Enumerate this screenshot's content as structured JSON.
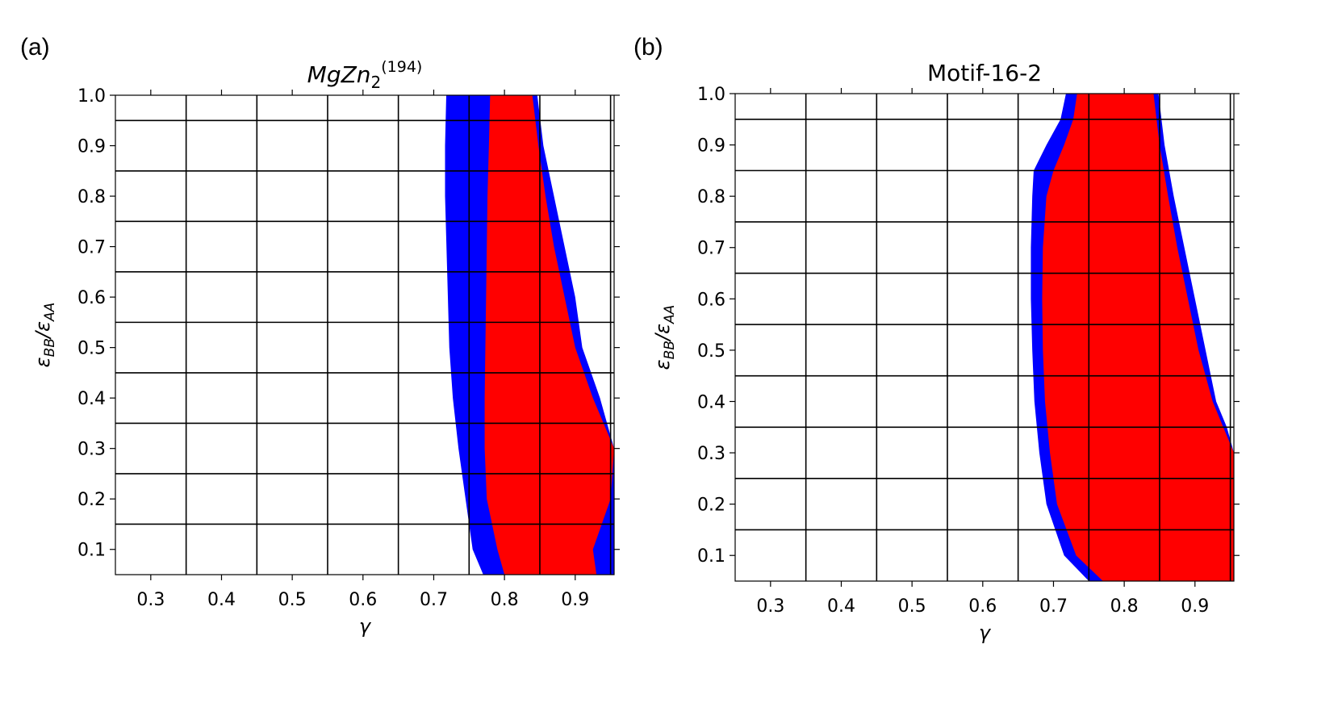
{
  "figure": {
    "panel_labels": [
      "(a)",
      "(b)"
    ]
  },
  "colors": {
    "region_primary": "#ff0000",
    "region_secondary": "#0000ff",
    "grid": "#000000",
    "axis": "#000000",
    "background": "#ffffff"
  },
  "chart_data": [
    {
      "type": "area",
      "panel": "(a)",
      "title": "MgZn",
      "title_subscript": "2",
      "title_superscript": "(194)",
      "xlabel": "γ",
      "ylabel_main": "ε",
      "ylabel_sub1": "BB",
      "ylabel_mid": "/ε",
      "ylabel_sub2": "AA",
      "xlim": [
        0.25,
        0.955
      ],
      "ylim": [
        0.05,
        1.0
      ],
      "xticks": [
        0.3,
        0.4,
        0.5,
        0.6,
        0.7,
        0.8,
        0.9
      ],
      "xtick_labels": [
        "0.3",
        "0.4",
        "0.5",
        "0.6",
        "0.7",
        "0.8",
        "0.9"
      ],
      "yticks": [
        0.1,
        0.2,
        0.3,
        0.4,
        0.5,
        0.6,
        0.7,
        0.8,
        0.9,
        1.0
      ],
      "ytick_labels": [
        "0.1",
        "0.2",
        "0.3",
        "0.4",
        "0.5",
        "0.6",
        "0.7",
        "0.8",
        "0.9",
        "1.0"
      ],
      "grid_x": [
        0.35,
        0.45,
        0.55,
        0.65,
        0.75,
        0.85,
        0.95
      ],
      "grid_y": [
        0.15,
        0.25,
        0.35,
        0.45,
        0.55,
        0.65,
        0.75,
        0.85,
        0.95
      ],
      "series": [
        {
          "name": "blue region",
          "color": "#0000ff",
          "left_boundary": [
            [
              0.05,
              0.77
            ],
            [
              0.1,
              0.755
            ],
            [
              0.2,
              0.745
            ],
            [
              0.3,
              0.735
            ],
            [
              0.4,
              0.727
            ],
            [
              0.5,
              0.722
            ],
            [
              0.6,
              0.72
            ],
            [
              0.7,
              0.718
            ],
            [
              0.8,
              0.716
            ],
            [
              0.9,
              0.716
            ],
            [
              1.0,
              0.718
            ]
          ],
          "right_boundary": [
            [
              0.05,
              0.955
            ],
            [
              0.1,
              0.955
            ],
            [
              0.2,
              0.955
            ],
            [
              0.3,
              0.955
            ],
            [
              0.4,
              0.935
            ],
            [
              0.5,
              0.91
            ],
            [
              0.6,
              0.9
            ],
            [
              0.7,
              0.885
            ],
            [
              0.8,
              0.87
            ],
            [
              0.9,
              0.855
            ],
            [
              1.0,
              0.845
            ]
          ]
        },
        {
          "name": "red region",
          "color": "#ff0000",
          "left_boundary": [
            [
              0.05,
              0.8
            ],
            [
              0.1,
              0.79
            ],
            [
              0.2,
              0.775
            ],
            [
              0.3,
              0.772
            ],
            [
              0.4,
              0.772
            ],
            [
              0.5,
              0.773
            ],
            [
              0.6,
              0.774
            ],
            [
              0.7,
              0.775
            ],
            [
              0.8,
              0.776
            ],
            [
              0.9,
              0.778
            ],
            [
              1.0,
              0.78
            ]
          ],
          "right_boundary": [
            [
              0.05,
              0.93
            ],
            [
              0.1,
              0.925
            ],
            [
              0.2,
              0.95
            ],
            [
              0.3,
              0.955
            ],
            [
              0.4,
              0.925
            ],
            [
              0.5,
              0.9
            ],
            [
              0.6,
              0.885
            ],
            [
              0.7,
              0.87
            ],
            [
              0.8,
              0.858
            ],
            [
              0.9,
              0.848
            ],
            [
              1.0,
              0.838
            ]
          ]
        }
      ]
    },
    {
      "type": "area",
      "panel": "(b)",
      "title": "Motif-16-2",
      "xlabel": "γ",
      "ylabel_main": "ε",
      "ylabel_sub1": "BB",
      "ylabel_mid": "/ε",
      "ylabel_sub2": "AA",
      "xlim": [
        0.25,
        0.955
      ],
      "ylim": [
        0.05,
        1.0
      ],
      "xticks": [
        0.3,
        0.4,
        0.5,
        0.6,
        0.7,
        0.8,
        0.9
      ],
      "xtick_labels": [
        "0.3",
        "0.4",
        "0.5",
        "0.6",
        "0.7",
        "0.8",
        "0.9"
      ],
      "yticks": [
        0.1,
        0.2,
        0.3,
        0.4,
        0.5,
        0.6,
        0.7,
        0.8,
        0.9,
        1.0
      ],
      "ytick_labels": [
        "0.1",
        "0.2",
        "0.3",
        "0.4",
        "0.5",
        "0.6",
        "0.7",
        "0.8",
        "0.9",
        "1.0"
      ],
      "grid_x": [
        0.35,
        0.45,
        0.55,
        0.65,
        0.75,
        0.85,
        0.95
      ],
      "grid_y": [
        0.15,
        0.25,
        0.35,
        0.45,
        0.55,
        0.65,
        0.75,
        0.85,
        0.95
      ],
      "series": [
        {
          "name": "blue region",
          "color": "#0000ff",
          "left_boundary": [
            [
              0.05,
              0.75
            ],
            [
              0.1,
              0.715
            ],
            [
              0.2,
              0.69
            ],
            [
              0.3,
              0.68
            ],
            [
              0.4,
              0.673
            ],
            [
              0.5,
              0.67
            ],
            [
              0.6,
              0.668
            ],
            [
              0.7,
              0.668
            ],
            [
              0.8,
              0.67
            ],
            [
              0.85,
              0.672
            ],
            [
              0.9,
              0.69
            ],
            [
              0.95,
              0.71
            ],
            [
              1.0,
              0.72
            ]
          ],
          "right_boundary": [
            [
              0.05,
              0.955
            ],
            [
              0.1,
              0.955
            ],
            [
              0.2,
              0.955
            ],
            [
              0.3,
              0.955
            ],
            [
              0.35,
              0.945
            ],
            [
              0.4,
              0.93
            ],
            [
              0.5,
              0.915
            ],
            [
              0.6,
              0.9
            ],
            [
              0.7,
              0.885
            ],
            [
              0.8,
              0.87
            ],
            [
              0.9,
              0.857
            ],
            [
              1.0,
              0.847
            ]
          ]
        },
        {
          "name": "red region",
          "color": "#ff0000",
          "left_boundary": [
            [
              0.05,
              0.77
            ],
            [
              0.1,
              0.732
            ],
            [
              0.2,
              0.705
            ],
            [
              0.3,
              0.695
            ],
            [
              0.4,
              0.688
            ],
            [
              0.5,
              0.685
            ],
            [
              0.6,
              0.684
            ],
            [
              0.7,
              0.685
            ],
            [
              0.8,
              0.69
            ],
            [
              0.85,
              0.7
            ],
            [
              0.9,
              0.715
            ],
            [
              0.95,
              0.728
            ],
            [
              1.0,
              0.735
            ]
          ],
          "right_boundary": [
            [
              0.05,
              0.955
            ],
            [
              0.1,
              0.955
            ],
            [
              0.2,
              0.955
            ],
            [
              0.3,
              0.955
            ],
            [
              0.35,
              0.94
            ],
            [
              0.4,
              0.925
            ],
            [
              0.5,
              0.905
            ],
            [
              0.6,
              0.89
            ],
            [
              0.7,
              0.875
            ],
            [
              0.8,
              0.862
            ],
            [
              0.9,
              0.85
            ],
            [
              1.0,
              0.84
            ]
          ]
        }
      ]
    }
  ]
}
